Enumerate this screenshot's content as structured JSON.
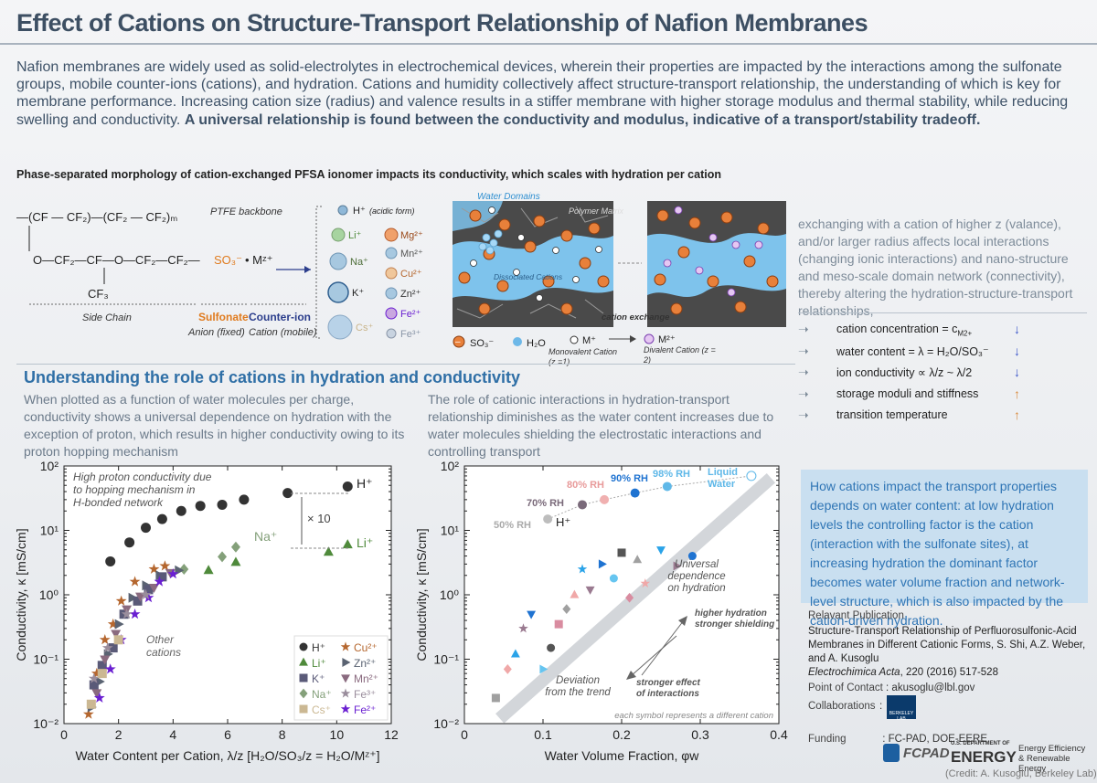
{
  "title": "Effect of Cations on Structure-Transport Relationship of Nafion Membranes",
  "intro": {
    "text": "Nafion membranes are widely used as solid-electrolytes in electrochemical devices, wherein their properties are impacted by the interactions among the sulfonate groups, mobile counter-ions (cations), and hydration. Cations and humidity collectively affect structure-transport relationship, the understanding of which is key for membrane performance.  Increasing cation size (radius) and valence results in a stiffer membrane with higher storage modulus and thermal stability, while reducing swelling and conductivity.",
    "bold": "A universal relationship is found between the conductivity and modulus, indicative of a transport/stability tradeoff."
  },
  "subtitle": "Phase-separated morphology of cation-exchanged PFSA ionomer impacts its conductivity, which scales with hydration per cation",
  "structure": {
    "backbone_label": "PTFE backbone",
    "side_chain_label": "Side Chain",
    "sulfonate_label": "Sulfonate",
    "sulfonate_sub": "Anion (fixed)",
    "counter_label": "Counter-ion",
    "counter_sub": "Cation (mobile)",
    "h_form": "(acidic form)",
    "ions_left": [
      "Li⁺",
      "Na⁺",
      "K⁺",
      "Cs⁺"
    ],
    "ions_right": [
      "Mg²⁺",
      "Mn²⁺",
      "Cu²⁺",
      "Zn²⁺",
      "Fe²⁺",
      "Fe³⁺"
    ]
  },
  "schematic": {
    "water_domains": "Water Domains",
    "polymer_matrix": "Polymer Matrix",
    "dissociated": "Dissociated Cations",
    "cation_exchange": "cation exchange",
    "legend": {
      "so3": "SO₃⁻",
      "h2o": "H₂O",
      "mono": "M⁺",
      "mono_sub": "Monovalent Cation (z =1)",
      "di": "M²⁺",
      "di_sub": "Divalent Cation (z = 2)"
    }
  },
  "exchange_text": "exchanging with a cation of higher z (valance), and/or larger radius affects local interactions (changing ionic interactions) and nano-structure and meso-scale domain network (connectivity), thereby altering the hydration-structure-transport relationships,",
  "effects": [
    {
      "label": "cation concentration = c",
      "sub": "M2+",
      "arrow": "↓",
      "color": "#3a55c9"
    },
    {
      "label": "water content = λ = H₂O/SO₃⁻",
      "sub": "",
      "arrow": "↓",
      "color": "#3a55c9"
    },
    {
      "label": "ion conductivity ∝ λ/z ~ λ/2",
      "sub": "",
      "arrow": "↓",
      "color": "#3a55c9"
    },
    {
      "label": "storage moduli and stiffness",
      "sub": "",
      "arrow": "↑",
      "color": "#d98a3d"
    },
    {
      "label": "transition temperature",
      "sub": "",
      "arrow": "↑",
      "color": "#d98a3d"
    }
  ],
  "section_title": "Understanding the role of cations in hydration and conductivity",
  "left_para": "When plotted as a function of water molecules per charge, conductivity shows a universal dependence on hydration with the exception of proton, which results in higher conductivity owing to its proton hopping mechanism",
  "right_para": "The role of cationic interactions in hydration-transport relationship diminishes as the water content increases due to water molecules shielding the electrostatic interactions and controlling transport",
  "blue_box": "How cations impact the transport properties depends on water content: at low hydration levels the controlling factor is the cation (interaction with the sulfonate sites), at increasing hydration the dominant factor becomes water volume fraction and network-level structure, which is also impacted by the cation-driven hydration.",
  "publication": {
    "heading": "Relavant Publication",
    "title": "Structure-Transport Relationship of Perfluorosulfonic-Acid Membranes in Different Cationic Forms, S. Shi, A.Z. Weber, and A. Kusoglu",
    "journal": "Electrochimica Acta",
    "citation": ", 220 (2016) 517-528",
    "contact_label": "Point of Contact",
    "contact": ": akusoglu@lbl.gov",
    "collab_label": "Collaborations",
    "collab_sep": ":",
    "funding_label": "Funding",
    "funding": ": FC-PAD, DOE-EERE",
    "logo_lab": "BERKELEY LAB",
    "logo_fcpad": "FCPAD",
    "logo_doe_small": "U.S. DEPARTMENT OF",
    "logo_doe": "ENERGY",
    "logo_eere": "Energy Efficiency & Renewable Energy",
    "credit": "(Credit: A. Kusoglu, Berkeley Lab)"
  },
  "chart_data": [
    {
      "type": "scatter",
      "xlabel": "Water Content per Cation, λ/z [H₂O/SO₃/z = H₂O/Mᶻ⁺]",
      "ylabel": "Conductivity, κ [mS/cm]",
      "xlim": [
        0,
        12
      ],
      "ylim": [
        0.01,
        100
      ],
      "yscale": "log",
      "xticks": [
        "0",
        "2",
        "4",
        "6",
        "8",
        "10",
        "12"
      ],
      "yticks": [
        "10⁻²",
        "10⁻¹",
        "10⁰",
        "10¹",
        "10²"
      ],
      "annotations": {
        "proton_note": "High proton conductivity due to hopping mechanism in H-bonded network",
        "times10": "× 10",
        "other": "Other cations",
        "h": "H⁺",
        "na": "Na⁺",
        "li": "Li⁺"
      },
      "legend_position": "bottom-right",
      "legend": [
        {
          "name": "H⁺",
          "color": "#333333",
          "shape": "circle"
        },
        {
          "name": "Cu²⁺",
          "color": "#b5672f",
          "shape": "star"
        },
        {
          "name": "Li⁺",
          "color": "#4f8a3b",
          "shape": "triangle-up"
        },
        {
          "name": "Zn²⁺",
          "color": "#5a6372",
          "shape": "triangle-right"
        },
        {
          "name": "K⁺",
          "color": "#5a5a78",
          "shape": "square"
        },
        {
          "name": "Mn²⁺",
          "color": "#8a6a7f",
          "shape": "triangle-down"
        },
        {
          "name": "Na⁺",
          "color": "#84a07a",
          "shape": "diamond"
        },
        {
          "name": "Fe³⁺",
          "color": "#9a8d9c",
          "shape": "star"
        },
        {
          "name": "Cs⁺",
          "color": "#cbb893",
          "shape": "square"
        },
        {
          "name": "Fe²⁺",
          "color": "#6a1fd1",
          "shape": "star"
        }
      ],
      "series": [
        {
          "name": "H⁺",
          "x": [
            1.7,
            2.4,
            3.0,
            3.6,
            4.3,
            5.0,
            5.8,
            6.6,
            8.2,
            10.4
          ],
          "y": [
            3.3,
            6.5,
            11,
            15,
            20,
            24,
            25,
            30,
            38,
            48
          ]
        },
        {
          "name": "Li⁺",
          "x": [
            5.3,
            6.3,
            9.7,
            10.4
          ],
          "y": [
            2.4,
            3.2,
            4.6,
            6.0
          ]
        },
        {
          "name": "Na⁺",
          "x": [
            4.4,
            5.8,
            6.3
          ],
          "y": [
            2.5,
            3.9,
            5.5
          ]
        },
        {
          "name": "Cu²⁺",
          "x": [
            0.9,
            1.2,
            1.5,
            1.8,
            2.1,
            2.6,
            3.3,
            3.7
          ],
          "y": [
            0.014,
            0.06,
            0.2,
            0.35,
            0.8,
            1.6,
            2.5,
            2.8
          ]
        },
        {
          "name": "Zn²⁺",
          "x": [
            1.0,
            1.3,
            1.6,
            2.0,
            2.5,
            3.0,
            3.5,
            4.2
          ],
          "y": [
            0.018,
            0.045,
            0.12,
            0.35,
            0.9,
            1.4,
            2.0,
            2.4
          ]
        },
        {
          "name": "K⁺",
          "x": [
            1.1,
            1.4,
            1.8,
            2.2,
            2.7,
            3.1,
            3.6
          ],
          "y": [
            0.04,
            0.08,
            0.15,
            0.5,
            0.8,
            1.2,
            1.9
          ]
        },
        {
          "name": "Mn²⁺",
          "x": [
            1.2,
            1.5,
            1.9,
            2.3,
            2.8,
            3.3,
            3.9
          ],
          "y": [
            0.03,
            0.1,
            0.25,
            0.6,
            0.95,
            1.3,
            2.2
          ]
        },
        {
          "name": "Fe²⁺",
          "x": [
            1.3,
            1.7,
            2.1,
            2.6,
            3.1,
            3.5,
            4.0
          ],
          "y": [
            0.025,
            0.07,
            0.2,
            0.5,
            0.9,
            1.6,
            2.1
          ]
        },
        {
          "name": "Fe³⁺",
          "x": [
            1.1,
            1.6,
            2.3,
            3.0
          ],
          "y": [
            0.05,
            0.15,
            0.5,
            1.0
          ]
        },
        {
          "name": "Cs⁺",
          "x": [
            1.0,
            1.4,
            2.0
          ],
          "y": [
            0.02,
            0.06,
            0.2
          ]
        }
      ]
    },
    {
      "type": "scatter",
      "xlabel": "Water Volume Fraction, φw",
      "ylabel": "Conductivity, κ [mS/cm]",
      "xlim": [
        0,
        0.4
      ],
      "ylim": [
        0.01,
        100
      ],
      "yscale": "log",
      "xticks": [
        "0",
        "0.1",
        "0.2",
        "0.3",
        "0.4"
      ],
      "yticks": [
        "10⁻²",
        "10⁻¹",
        "10⁰",
        "10¹",
        "10²"
      ],
      "annotations": {
        "rh50": "50% RH",
        "rh70": "70% RH",
        "rh80": "80% RH",
        "rh90": "90% RH",
        "rh98": "98% RH",
        "liquid": "Liquid Water",
        "h": "H⁺",
        "universal": "Universal dependence on hydration",
        "shielding": "higher hydration stronger shielding",
        "deviation": "Deviation from the trend",
        "stronger": "stronger effect of interactions",
        "each_symbol": "each symbol represents a different cation"
      },
      "series": [
        {
          "name": "H⁺",
          "x": [
            0.106,
            0.15,
            0.178,
            0.217,
            0.258,
            0.365
          ],
          "y": [
            15,
            25,
            30,
            38,
            48,
            70
          ]
        },
        {
          "name": "Other cations",
          "x": [
            0.04,
            0.055,
            0.065,
            0.075,
            0.085,
            0.1,
            0.11,
            0.12,
            0.13,
            0.14,
            0.15,
            0.16,
            0.175,
            0.19,
            0.2,
            0.21,
            0.22,
            0.23,
            0.25,
            0.27,
            0.29
          ],
          "y": [
            0.025,
            0.07,
            0.12,
            0.3,
            0.5,
            0.07,
            0.15,
            0.35,
            0.6,
            1.0,
            2.5,
            1.2,
            3.0,
            1.8,
            4.5,
            0.9,
            3.5,
            1.5,
            5.0,
            2.8,
            4.0
          ]
        }
      ]
    }
  ]
}
